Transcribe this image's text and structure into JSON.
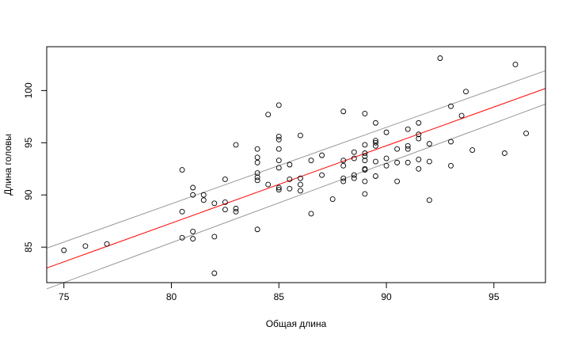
{
  "chart_data": {
    "type": "scatter",
    "title": "",
    "xlabel": "Общая длина",
    "ylabel": "Длина головы",
    "xlim": [
      74.2,
      97.4
    ],
    "ylim": [
      81.6,
      104.2
    ],
    "xticks": [
      75,
      80,
      85,
      90,
      95
    ],
    "yticks": [
      85,
      90,
      95,
      100
    ],
    "grid": false,
    "legend": "none",
    "colors": {
      "points": "#000000",
      "fit_line": "#ff0000",
      "confidence_band": "#999999"
    },
    "points": [
      [
        75,
        84.7
      ],
      [
        76,
        85.1
      ],
      [
        77,
        85.3
      ],
      [
        80.5,
        92.4
      ],
      [
        80.5,
        88.4
      ],
      [
        80.5,
        85.9
      ],
      [
        81,
        90.7
      ],
      [
        81,
        90.0
      ],
      [
        81,
        86.5
      ],
      [
        81,
        85.8
      ],
      [
        81.5,
        90.0
      ],
      [
        81.5,
        89.5
      ],
      [
        82,
        89.2
      ],
      [
        82,
        86.0
      ],
      [
        82,
        82.5
      ],
      [
        82.5,
        91.5
      ],
      [
        82.5,
        89.3
      ],
      [
        82.5,
        88.6
      ],
      [
        83,
        94.8
      ],
      [
        83,
        88.7
      ],
      [
        83,
        88.4
      ],
      [
        84,
        94.4
      ],
      [
        84,
        93.6
      ],
      [
        84,
        93.1
      ],
      [
        84,
        92.1
      ],
      [
        84,
        91.7
      ],
      [
        84,
        91.4
      ],
      [
        84,
        86.7
      ],
      [
        84.5,
        97.7
      ],
      [
        84.5,
        91.0
      ],
      [
        85,
        98.6
      ],
      [
        85,
        95.6
      ],
      [
        85,
        95.3
      ],
      [
        85,
        94.4
      ],
      [
        85,
        93.3
      ],
      [
        85,
        92.6
      ],
      [
        85,
        90.7
      ],
      [
        85,
        90.5
      ],
      [
        85.5,
        92.9
      ],
      [
        85.5,
        91.5
      ],
      [
        85.5,
        90.6
      ],
      [
        86,
        95.7
      ],
      [
        86,
        91.6
      ],
      [
        86,
        91.0
      ],
      [
        86,
        90.4
      ],
      [
        86.5,
        93.3
      ],
      [
        86.5,
        88.2
      ],
      [
        87,
        93.8
      ],
      [
        87,
        91.9
      ],
      [
        87.5,
        89.6
      ],
      [
        88,
        98.0
      ],
      [
        88,
        93.3
      ],
      [
        88,
        92.8
      ],
      [
        88,
        91.6
      ],
      [
        88,
        91.3
      ],
      [
        88.5,
        94.1
      ],
      [
        88.5,
        93.5
      ],
      [
        88.5,
        91.9
      ],
      [
        88.5,
        91.6
      ],
      [
        89,
        97.8
      ],
      [
        89,
        94.8
      ],
      [
        89,
        94.0
      ],
      [
        89,
        93.7
      ],
      [
        89,
        93.3
      ],
      [
        89,
        92.5
      ],
      [
        89,
        92.4
      ],
      [
        89,
        91.3
      ],
      [
        89,
        90.1
      ],
      [
        89.5,
        96.9
      ],
      [
        89.5,
        95.2
      ],
      [
        89.5,
        95.0
      ],
      [
        89.5,
        94.7
      ],
      [
        89.5,
        93.2
      ],
      [
        89.5,
        91.8
      ],
      [
        90,
        96.0
      ],
      [
        90,
        93.5
      ],
      [
        90,
        92.8
      ],
      [
        90.5,
        94.4
      ],
      [
        90.5,
        93.1
      ],
      [
        90.5,
        91.3
      ],
      [
        91,
        96.3
      ],
      [
        91,
        94.7
      ],
      [
        91,
        94.4
      ],
      [
        91,
        93.1
      ],
      [
        91.5,
        96.9
      ],
      [
        91.5,
        95.8
      ],
      [
        91.5,
        95.4
      ],
      [
        91.5,
        93.4
      ],
      [
        91.5,
        92.5
      ],
      [
        92,
        94.9
      ],
      [
        92,
        93.2
      ],
      [
        92,
        89.5
      ],
      [
        92.5,
        103.1
      ],
      [
        93,
        98.5
      ],
      [
        93,
        95.1
      ],
      [
        93,
        92.8
      ],
      [
        93.5,
        97.6
      ],
      [
        93.7,
        99.9
      ],
      [
        94,
        94.3
      ],
      [
        95.5,
        94.0
      ],
      [
        96,
        102.5
      ],
      [
        96.5,
        95.9
      ]
    ],
    "fit_line": [
      [
        74.2,
        83.0
      ],
      [
        97.4,
        100.2
      ]
    ],
    "confidence_upper": [
      [
        74.2,
        84.9
      ],
      [
        97.4,
        101.9
      ]
    ],
    "confidence_lower": [
      [
        74.2,
        81.0
      ],
      [
        97.4,
        98.7
      ]
    ]
  }
}
